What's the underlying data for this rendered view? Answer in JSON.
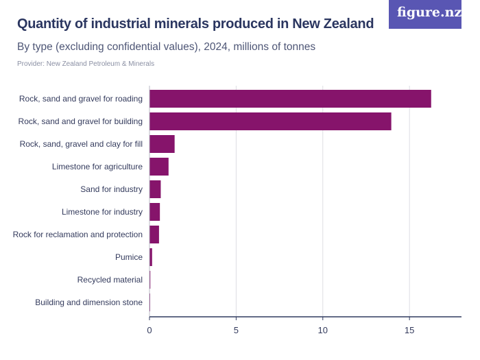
{
  "header": {
    "title": "Quantity of industrial minerals produced in New Zealand",
    "subtitle": "By type (excluding confidential values), 2024, millions of tonnes",
    "provider": "Provider: New Zealand Petroleum & Minerals",
    "logo_text": "figure.nz"
  },
  "chart_data": {
    "type": "bar",
    "orientation": "horizontal",
    "categories": [
      "Rock, sand and gravel for roading",
      "Rock, sand and gravel for building",
      "Rock, sand, gravel and clay for fill",
      "Limestone for agriculture",
      "Sand for industry",
      "Limestone for industry",
      "Rock for reclamation and protection",
      "Pumice",
      "Recycled material",
      "Building and dimension stone"
    ],
    "values": [
      16.25,
      13.95,
      1.45,
      1.1,
      0.65,
      0.6,
      0.55,
      0.15,
      0.05,
      0.02
    ],
    "xlim": [
      0,
      18
    ],
    "xticks": [
      0,
      5,
      10,
      15
    ],
    "grid": true,
    "colors": {
      "bar": "#86146b",
      "grid": "#dcdce3",
      "axis": "#2f3a5f",
      "logo_bg": "#5956b3"
    }
  }
}
